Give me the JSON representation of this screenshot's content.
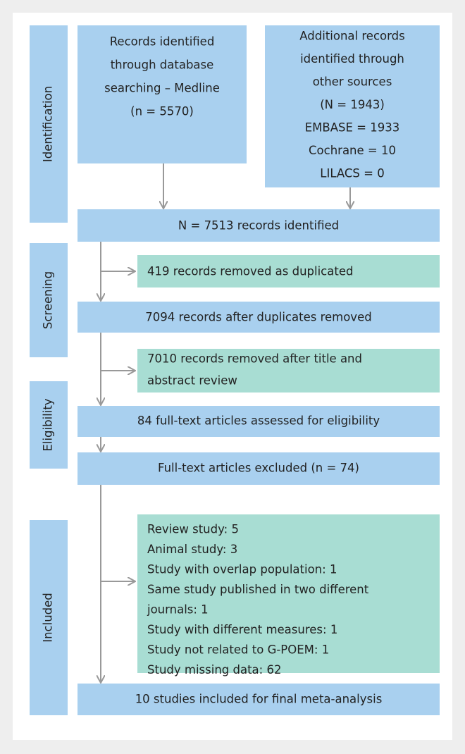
{
  "sections": [
    "Identification",
    "Screening",
    "Eligibility",
    "Included"
  ],
  "boxes": {
    "medline": [
      "Records identified",
      "through database",
      "searching – Medline",
      "(n = 5570)"
    ],
    "additional": [
      "Additional records",
      "identified through",
      "other sources",
      "(N = 1943)",
      "EMBASE = 1933",
      "Cochrane = 10",
      "LILACS = 0"
    ],
    "identified": [
      "N = 7513 records identified"
    ],
    "duplicates_removed": [
      "419 records removed as duplicated"
    ],
    "after_duplicates": [
      "7094 records after duplicates removed"
    ],
    "title_abstract_removed": [
      "7010 records removed after title and",
      "abstract review"
    ],
    "assessed": [
      "84 full-text articles assessed for eligibility"
    ],
    "excluded": [
      "Full-text articles excluded (n = 74)"
    ],
    "exclusion_reasons": [
      "Review study: 5",
      "Animal study: 3",
      "Study with overlap population: 1",
      "Same study published in two different",
      "journals: 1",
      "Study with different measures: 1",
      "Study not related to G-POEM: 1",
      "Study missing data: 62"
    ],
    "included": [
      "10 studies included for final meta-analysis"
    ]
  }
}
